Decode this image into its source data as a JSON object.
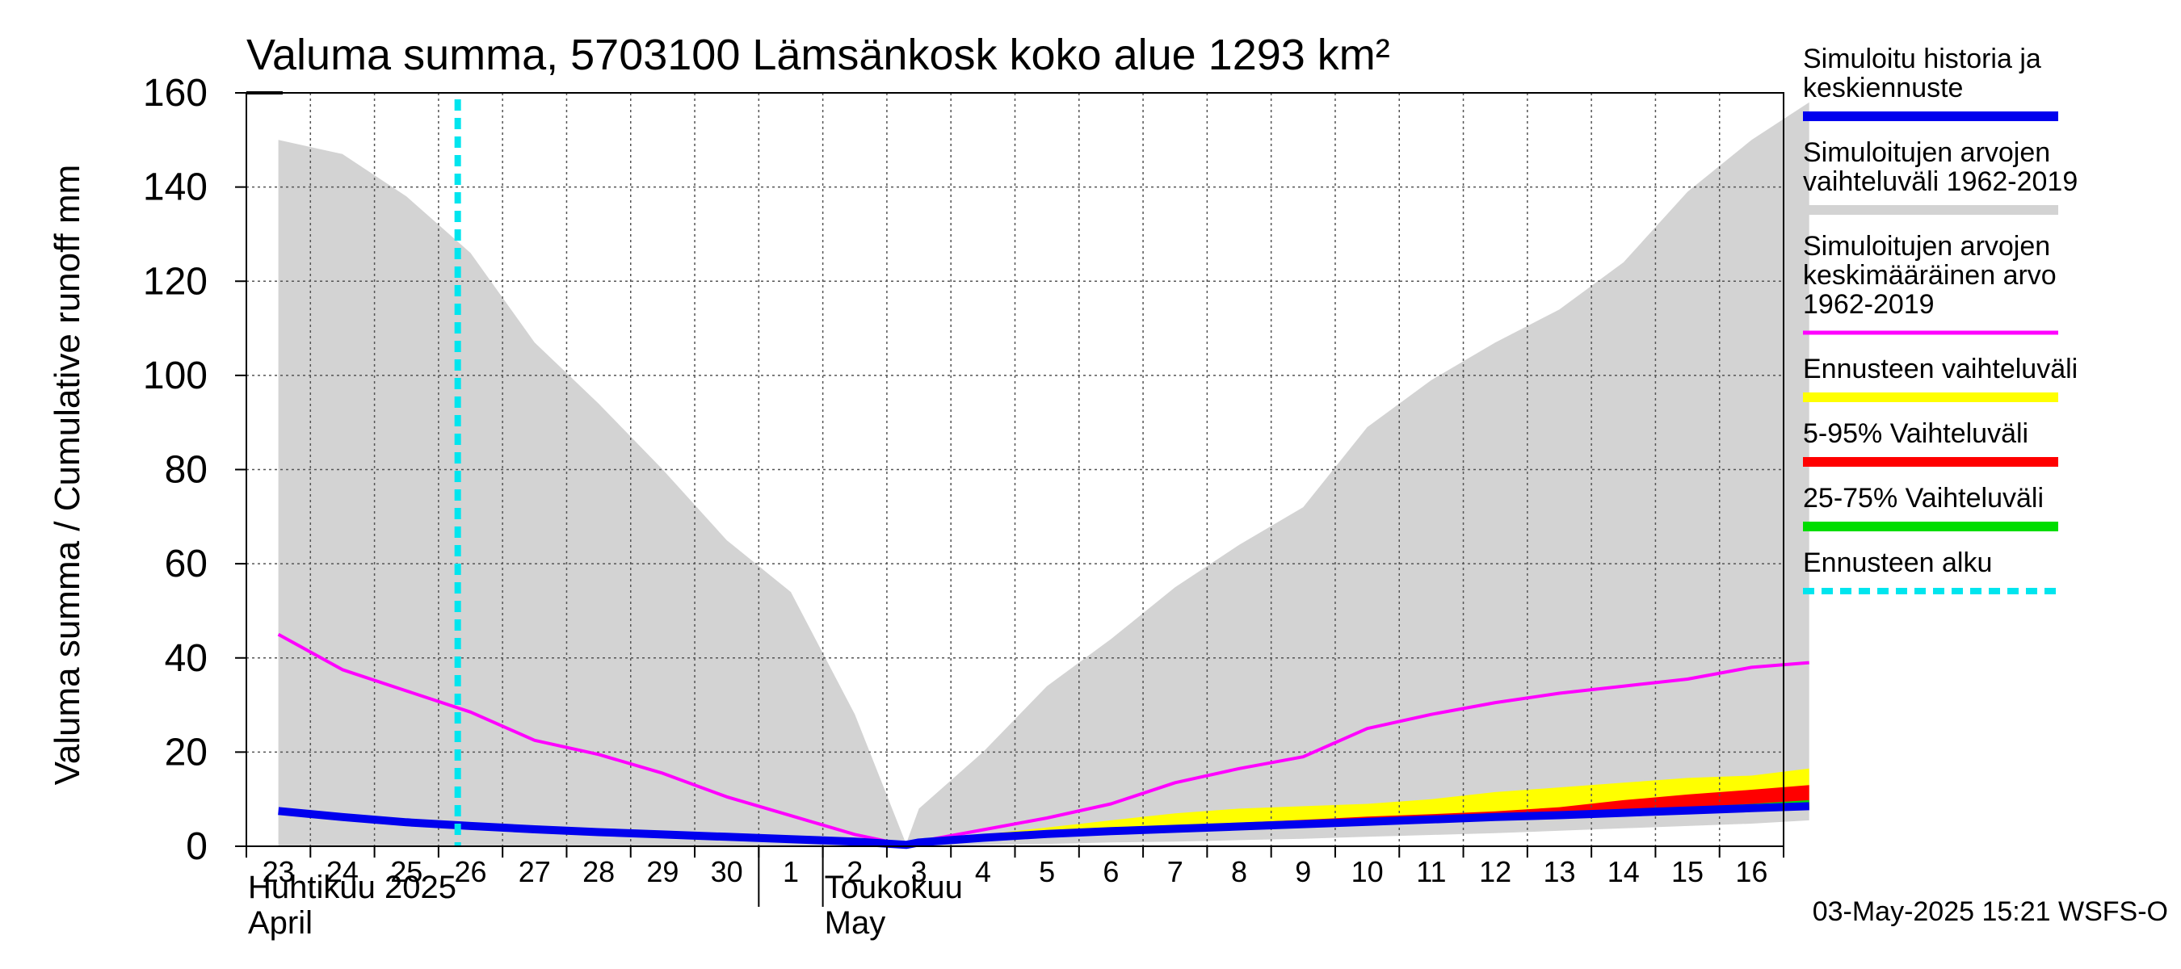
{
  "chart_data": {
    "type": "area",
    "title": "Valuma summa, 5703100 Lämsänkosk koko alue 1293 km²",
    "ylabel": "Valuma summa / Cumulative runoff    mm",
    "ylim": [
      0,
      160
    ],
    "yticks": [
      0,
      20,
      40,
      60,
      80,
      100,
      120,
      140,
      160
    ],
    "grid": true,
    "legend_position": "right",
    "x": [
      "23",
      "24",
      "25",
      "26",
      "27",
      "28",
      "29",
      "30",
      "1",
      "2",
      "3",
      "4",
      "5",
      "6",
      "7",
      "8",
      "9",
      "10",
      "11",
      "12",
      "13",
      "14",
      "15",
      "16"
    ],
    "month_labels": [
      {
        "index": 0,
        "lines": [
          "Huhtikuu  2025",
          "April"
        ]
      },
      {
        "index": 8,
        "lines": [
          "",
          ""
        ]
      },
      {
        "index": 9,
        "lines": [
          "Toukokuu",
          "May"
        ]
      }
    ],
    "forecast_start": "2.8",
    "series": [
      {
        "name": "Simuloitujen arvojen vaihteluväli 1962-2019",
        "kind": "band",
        "color": "#d3d3d3",
        "x": [
          0,
          1,
          2,
          3,
          4,
          5,
          6,
          7,
          8,
          9,
          9.8,
          10,
          11,
          12,
          13,
          14,
          15,
          16,
          17,
          18,
          19,
          20,
          21,
          22,
          23,
          23.9
        ],
        "upper": [
          150,
          147,
          138,
          126,
          107,
          94,
          80,
          65,
          54,
          28,
          0.5,
          8,
          20,
          34,
          44,
          55,
          64,
          72,
          89,
          99,
          107,
          114,
          124,
          139,
          150,
          158
        ],
        "lower": [
          0,
          0,
          0,
          0,
          0,
          0,
          0,
          0,
          0,
          0,
          0,
          0,
          0.3,
          0.5,
          0.8,
          1,
          1.3,
          1.6,
          2,
          2.4,
          2.8,
          3.3,
          3.8,
          4.3,
          4.8,
          5.5
        ]
      },
      {
        "name": "Ennusteen vaihteluväli",
        "kind": "band",
        "color": "#ffff00",
        "x": [
          9.8,
          10,
          11,
          12,
          13,
          14,
          15,
          16,
          17,
          18,
          19,
          20,
          21,
          22,
          23,
          23.9
        ],
        "upper": [
          0.3,
          1,
          2.5,
          4,
          5.5,
          7,
          8,
          8.5,
          9,
          10,
          11.5,
          12.5,
          13.5,
          14.5,
          15,
          16.5
        ],
        "lower": [
          0,
          0.5,
          1.5,
          2.3,
          3,
          3.6,
          4.2,
          4.8,
          5.3,
          5.8,
          6.3,
          6.6,
          6.9,
          7.2,
          7.5,
          7.8
        ]
      },
      {
        "name": "5-95% Vaihteluväli",
        "kind": "band",
        "color": "#ff0000",
        "x": [
          9.8,
          10,
          11,
          12,
          13,
          14,
          15,
          16,
          17,
          18,
          19,
          20,
          21,
          22,
          23,
          23.9
        ],
        "upper": [
          0.3,
          0.9,
          2,
          2.8,
          3.6,
          4.3,
          5,
          5.6,
          6.3,
          6.8,
          7.4,
          8.3,
          9.8,
          11,
          12,
          13
        ],
        "lower": [
          0.2,
          0.6,
          1.6,
          2.4,
          3.1,
          3.7,
          4.3,
          4.9,
          5.4,
          5.9,
          6.4,
          6.7,
          7,
          7.3,
          7.6,
          7.9
        ]
      },
      {
        "name": "25-75% Vaihteluväli",
        "kind": "band",
        "color": "#00dd00",
        "x": [
          9.8,
          10,
          11,
          12,
          13,
          14,
          15,
          16,
          17,
          18,
          19,
          20,
          21,
          22,
          23,
          23.9
        ],
        "upper": [
          0.3,
          0.8,
          1.8,
          2.6,
          3.3,
          3.9,
          4.5,
          5.1,
          5.6,
          6.1,
          6.6,
          7.1,
          7.7,
          8.3,
          9,
          9.8
        ],
        "lower": [
          0.2,
          0.7,
          1.7,
          2.5,
          3.2,
          3.8,
          4.4,
          5,
          5.5,
          6,
          6.5,
          6.9,
          7.2,
          7.5,
          7.8,
          8.1
        ]
      },
      {
        "name": "Simuloitujen arvojen keskimääräinen arvo 1962-2019",
        "kind": "line",
        "color": "#ff00ff",
        "x": [
          0,
          1,
          2,
          3,
          4,
          5,
          6,
          7,
          8,
          9,
          9.8,
          10,
          11,
          12,
          13,
          14,
          15,
          16,
          17,
          18,
          19,
          20,
          21,
          22,
          23,
          23.9
        ],
        "y": [
          45,
          37.5,
          33,
          28.5,
          22.5,
          19.5,
          15.5,
          10.5,
          6.5,
          2.5,
          0.2,
          1,
          3.5,
          6,
          9,
          13.5,
          16.5,
          19,
          25,
          28,
          30.5,
          32.5,
          34,
          35.5,
          38,
          39
        ]
      },
      {
        "name": "Simuloitu historia ja keskiennuste",
        "kind": "line",
        "color": "#0000ee",
        "x": [
          0,
          1,
          2,
          3,
          4,
          5,
          6,
          7,
          8,
          9,
          9.8,
          10,
          11,
          12,
          13,
          14,
          15,
          16,
          17,
          18,
          19,
          20,
          21,
          22,
          23,
          23.9
        ],
        "y": [
          7.5,
          6.2,
          5.1,
          4.3,
          3.6,
          3,
          2.5,
          2,
          1.5,
          1,
          0.3,
          0.8,
          1.8,
          2.6,
          3.2,
          3.7,
          4.2,
          4.7,
          5.2,
          5.7,
          6.2,
          6.6,
          7.1,
          7.6,
          8.1,
          8.5
        ]
      }
    ],
    "legend": [
      {
        "lines": [
          "Simuloitu historia ja",
          "keskiennuste"
        ],
        "color": "#0000ee",
        "style": "solid"
      },
      {
        "lines": [
          "Simuloitujen arvojen",
          "vaihteluväli 1962-2019"
        ],
        "color": "#d3d3d3",
        "style": "solid"
      },
      {
        "lines": [
          "Simuloitujen arvojen",
          "keskimääräinen arvo",
          "   1962-2019"
        ],
        "color": "#ff00ff",
        "style": "thin"
      },
      {
        "lines": [
          "Ennusteen vaihteluväli"
        ],
        "color": "#ffff00",
        "style": "solid"
      },
      {
        "lines": [
          "5-95% Vaihteluväli"
        ],
        "color": "#ff0000",
        "style": "solid"
      },
      {
        "lines": [
          "25-75% Vaihteluväli"
        ],
        "color": "#00dd00",
        "style": "solid"
      },
      {
        "lines": [
          "Ennusteen alku"
        ],
        "color": "#00e5ee",
        "style": "dashed"
      }
    ]
  },
  "footer": {
    "timestamp": "03-May-2025 15:21 WSFS-O"
  }
}
